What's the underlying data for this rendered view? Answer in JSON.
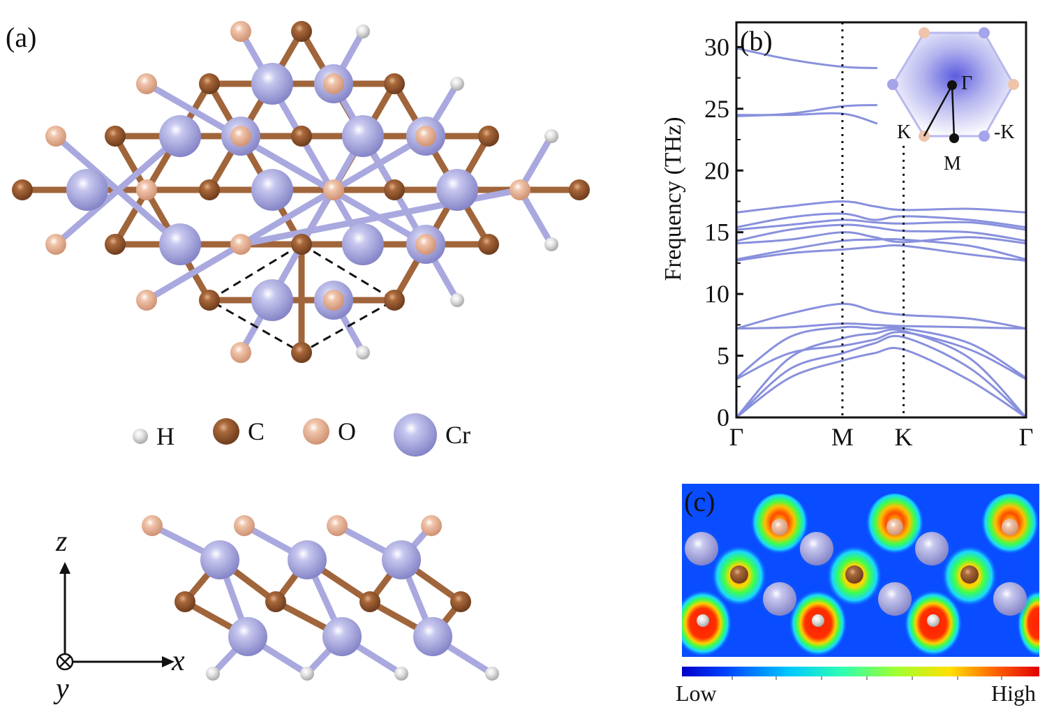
{
  "panels": {
    "a": {
      "label": "(a)"
    },
    "b": {
      "label": "(b)"
    },
    "c": {
      "label": "(c)"
    }
  },
  "legend": [
    {
      "symbol": "H",
      "color": "#d2d2d0"
    },
    {
      "symbol": "C",
      "color": "#9a5a30"
    },
    {
      "symbol": "O",
      "color": "#e6b196"
    },
    {
      "symbol": "Cr",
      "color": "#9a9ad6"
    }
  ],
  "axes3d": {
    "z": "z",
    "x": "x",
    "y": "y"
  },
  "colorbar": {
    "low": "Low",
    "high": "High"
  },
  "brillouin_zone": {
    "labels": {
      "gamma": "Γ",
      "k": "K",
      "k_neg": "-K",
      "m": "M"
    }
  },
  "colors": {
    "band": "#8890dd",
    "frame": "#111111"
  },
  "chart_data": {
    "type": "line",
    "ylabel": "Frequency (THz)",
    "ylim": [
      0,
      32
    ],
    "yticks": [
      0,
      5,
      10,
      15,
      20,
      25,
      30
    ],
    "x": [
      0,
      1,
      1.577,
      2.732
    ],
    "xtick_labels": [
      "Γ",
      "M",
      "K",
      "Γ"
    ],
    "vlines_at": [
      1,
      1.577
    ],
    "series": [
      {
        "x": [
          0,
          0.5,
          1,
          1.3,
          1.577,
          2.2,
          2.732
        ],
        "values": [
          0,
          3.2,
          4.6,
          5.2,
          5.5,
          3.0,
          0
        ]
      },
      {
        "x": [
          0,
          0.5,
          1,
          1.3,
          1.577,
          2.2,
          2.732
        ],
        "values": [
          0,
          3.9,
          5.2,
          6.0,
          6.5,
          4.0,
          0
        ]
      },
      {
        "x": [
          0,
          0.5,
          1,
          1.3,
          1.577,
          2.2,
          2.732
        ],
        "values": [
          0,
          4.8,
          6.4,
          6.8,
          7.0,
          4.8,
          0
        ]
      },
      {
        "x": [
          0,
          0.5,
          1,
          1.3,
          1.577,
          2.2,
          2.732
        ],
        "values": [
          3.1,
          5.2,
          5.8,
          6.3,
          6.9,
          5.5,
          3.1
        ]
      },
      {
        "x": [
          0,
          0.5,
          1,
          1.3,
          1.577,
          2.2,
          2.732
        ],
        "values": [
          3.2,
          6.5,
          7.3,
          7.2,
          7.2,
          6.0,
          3.2
        ]
      },
      {
        "x": [
          0,
          0.5,
          1,
          1.3,
          1.577,
          2.2,
          2.732
        ],
        "values": [
          7.2,
          7.3,
          7.6,
          7.5,
          7.4,
          7.3,
          7.2
        ]
      },
      {
        "x": [
          0,
          0.5,
          1,
          1.3,
          1.577,
          2.2,
          2.732
        ],
        "values": [
          7.2,
          8.4,
          9.2,
          8.6,
          8.3,
          8.0,
          7.2
        ]
      },
      {
        "x": [
          0,
          0.5,
          1,
          1.3,
          1.577,
          2.2,
          2.732
        ],
        "values": [
          12.7,
          13.3,
          13.6,
          13.8,
          13.9,
          13.2,
          12.7
        ]
      },
      {
        "x": [
          0,
          0.5,
          1,
          1.3,
          1.577,
          2.2,
          2.732
        ],
        "values": [
          12.8,
          13.6,
          14.3,
          14.4,
          14.4,
          13.9,
          12.8
        ]
      },
      {
        "x": [
          0,
          0.5,
          1,
          1.3,
          1.577,
          2.2,
          2.732
        ],
        "values": [
          14.1,
          14.4,
          15.0,
          14.6,
          14.2,
          14.6,
          14.1
        ]
      },
      {
        "x": [
          0,
          0.5,
          1,
          1.3,
          1.577,
          2.2,
          2.732
        ],
        "values": [
          14.3,
          15.2,
          15.6,
          15.4,
          15.1,
          15.0,
          14.3
        ]
      },
      {
        "x": [
          0,
          0.5,
          1,
          1.3,
          1.577,
          2.2,
          2.732
        ],
        "values": [
          15.2,
          15.6,
          16.0,
          15.8,
          15.7,
          15.8,
          15.2
        ]
      },
      {
        "x": [
          0,
          0.5,
          1,
          1.3,
          1.577,
          2.2,
          2.732
        ],
        "values": [
          15.4,
          16.2,
          16.5,
          16.0,
          16.3,
          16.0,
          15.4
        ]
      },
      {
        "x": [
          0,
          0.5,
          1,
          1.3,
          1.577,
          2.2,
          2.732
        ],
        "values": [
          16.6,
          17.1,
          17.5,
          17.1,
          16.8,
          16.9,
          16.6
        ]
      },
      {
        "x": [
          0,
          0.5,
          1
        ],
        "values": [
          24.4,
          24.6,
          25.2
        ],
        "tail": 25.3
      },
      {
        "x": [
          0,
          0.5,
          1
        ],
        "values": [
          24.5,
          24.5,
          24.6
        ],
        "tail": 23.8
      },
      {
        "x": [
          0,
          0.5,
          1
        ],
        "values": [
          29.9,
          29.0,
          28.4
        ],
        "tail": 28.3
      }
    ]
  }
}
